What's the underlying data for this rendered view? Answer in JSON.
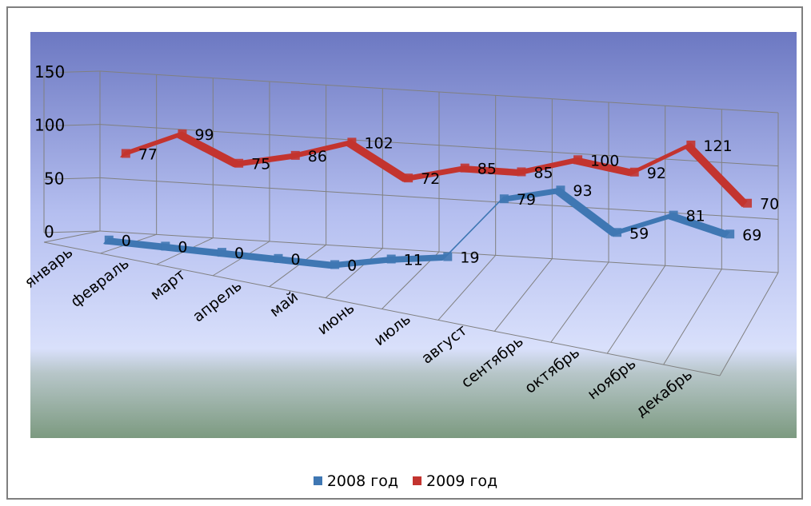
{
  "chart_data": {
    "type": "line",
    "categories": [
      "январь",
      "февраль",
      "март",
      "апрель",
      "май",
      "июнь",
      "июль",
      "август",
      "сентябрь",
      "октябрь",
      "ноябрь",
      "декабрь"
    ],
    "series": [
      {
        "name": "2008 год",
        "values": [
          0,
          0,
          0,
          0,
          0,
          11,
          19,
          79,
          93,
          59,
          81,
          69
        ],
        "color": "#3f77b3"
      },
      {
        "name": "2009 год",
        "values": [
          77,
          99,
          75,
          86,
          102,
          72,
          85,
          85,
          100,
          92,
          121,
          70
        ],
        "color": "#c3342f"
      }
    ],
    "yticks": [
      "0",
      "50",
      "100",
      "150"
    ],
    "ylim": [
      0,
      150
    ],
    "grid": true,
    "legend_position": "bottom",
    "title": "",
    "xlabel": "",
    "ylabel": ""
  }
}
